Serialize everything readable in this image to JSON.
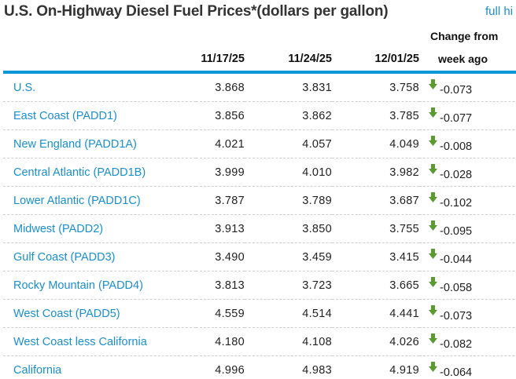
{
  "header": {
    "title": "U.S. On-Highway Diesel Fuel Prices*(dollars per gallon)",
    "link_label": "full hi"
  },
  "columns": {
    "region": "",
    "date1": "11/17/25",
    "date2": "11/24/25",
    "date3": "12/01/25",
    "change_line1": "Change from",
    "change_line2": "week ago"
  },
  "colors": {
    "accent": "#0b96d6",
    "link": "#1a8fce",
    "down_arrow": "#5a9a2e"
  },
  "rows": [
    {
      "region": "U.S.",
      "v1": "3.868",
      "v2": "3.831",
      "v3": "3.758",
      "change": "-0.073",
      "direction": "down-arrow-icon"
    },
    {
      "region": "East Coast (PADD1)",
      "v1": "3.856",
      "v2": "3.862",
      "v3": "3.785",
      "change": "-0.077",
      "direction": "down-arrow-icon"
    },
    {
      "region": "New England (PADD1A)",
      "v1": "4.021",
      "v2": "4.057",
      "v3": "4.049",
      "change": "-0.008",
      "direction": "down-arrow-icon"
    },
    {
      "region": "Central Atlantic (PADD1B)",
      "v1": "3.999",
      "v2": "4.010",
      "v3": "3.982",
      "change": "-0.028",
      "direction": "down-arrow-icon"
    },
    {
      "region": "Lower Atlantic (PADD1C)",
      "v1": "3.787",
      "v2": "3.789",
      "v3": "3.687",
      "change": "-0.102",
      "direction": "down-arrow-icon"
    },
    {
      "region": "Midwest (PADD2)",
      "v1": "3.913",
      "v2": "3.850",
      "v3": "3.755",
      "change": "-0.095",
      "direction": "down-arrow-icon"
    },
    {
      "region": "Gulf Coast (PADD3)",
      "v1": "3.490",
      "v2": "3.459",
      "v3": "3.415",
      "change": "-0.044",
      "direction": "down-arrow-icon"
    },
    {
      "region": "Rocky Mountain (PADD4)",
      "v1": "3.813",
      "v2": "3.723",
      "v3": "3.665",
      "change": "-0.058",
      "direction": "down-arrow-icon"
    },
    {
      "region": "West Coast (PADD5)",
      "v1": "4.559",
      "v2": "4.514",
      "v3": "4.441",
      "change": "-0.073",
      "direction": "down-arrow-icon"
    },
    {
      "region": "West Coast less California",
      "v1": "4.180",
      "v2": "4.108",
      "v3": "4.026",
      "change": "-0.082",
      "direction": "down-arrow-icon"
    },
    {
      "region": "California",
      "v1": "4.996",
      "v2": "4.983",
      "v3": "4.919",
      "change": "-0.064",
      "direction": "down-arrow-icon"
    }
  ]
}
